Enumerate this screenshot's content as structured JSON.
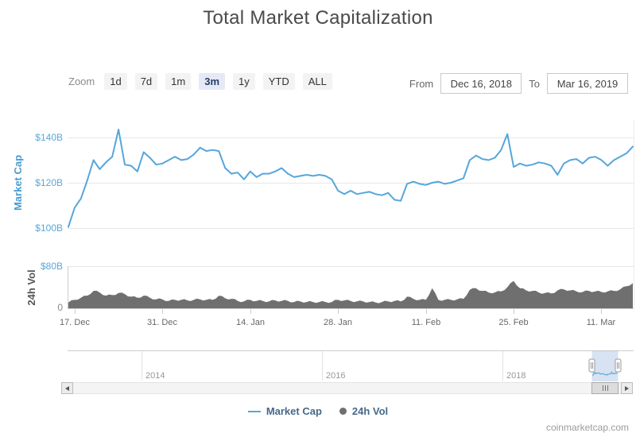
{
  "title": "Total Market Capitalization",
  "toolbar": {
    "zoom_label": "Zoom",
    "buttons": [
      "1d",
      "7d",
      "1m",
      "3m",
      "1y",
      "YTD",
      "ALL"
    ],
    "selected": "3m",
    "from_label": "From",
    "from_value": "Dec 16, 2018",
    "to_label": "To",
    "to_value": "Mar 16, 2019"
  },
  "axes": {
    "cap_title": "Market Cap",
    "cap_ticks": [
      "$140B",
      "$120B",
      "$100B"
    ],
    "vol_title": "24h Vol",
    "vol_ticks": [
      "$80B",
      "0"
    ],
    "x_ticks": [
      "17. Dec",
      "31. Dec",
      "14. Jan",
      "28. Jan",
      "11. Feb",
      "25. Feb",
      "11. Mar"
    ]
  },
  "navigator": {
    "year_labels": [
      "2014",
      "2016",
      "2018"
    ]
  },
  "legend": {
    "items": [
      {
        "label": "Market Cap",
        "marker": "line"
      },
      {
        "label": "24h Vol",
        "marker": "circle"
      }
    ]
  },
  "attribution": "coinmarketcap.com",
  "colors": {
    "market_cap_line": "#55a6dc",
    "volume_fill": "#6f6f6f",
    "axis_label_blue": "#58a7d8",
    "axis_label_gray": "#888888",
    "cap_axis_title": "#4a9bd1",
    "vol_axis_title": "#555555",
    "navigator_mask": "rgba(110,150,210,0.28)"
  },
  "chart_data": {
    "type": "line",
    "title": "Total Market Capitalization",
    "x_start": "2018-12-16",
    "x_end": "2019-03-16",
    "interval": "daily",
    "x_tick_labels": [
      "17. Dec",
      "31. Dec",
      "14. Jan",
      "28. Jan",
      "11. Feb",
      "25. Feb",
      "11. Mar"
    ],
    "cap_axis": {
      "label": "Market Cap",
      "unit": "USD billions",
      "ticks": [
        100,
        120,
        140
      ],
      "range": [
        95,
        148
      ]
    },
    "vol_axis": {
      "label": "24h Vol",
      "unit": "USD billions",
      "ticks": [
        0,
        80
      ],
      "range": [
        0,
        80
      ]
    },
    "navigator_years": [
      2014,
      2016,
      2018
    ],
    "series": [
      {
        "name": "Market Cap",
        "type": "line",
        "unit": "USD billions",
        "values": [
          100.5,
          109,
          113,
          121,
          130,
          126,
          129,
          131.5,
          143.5,
          128,
          127.5,
          125,
          133.5,
          131,
          128,
          128.5,
          130,
          131.5,
          130,
          130.5,
          132.5,
          135.5,
          134,
          134.5,
          134,
          126.5,
          124,
          124.5,
          121.5,
          125,
          122.5,
          124,
          124,
          125,
          126.5,
          124,
          122.5,
          123,
          123.5,
          123,
          123.5,
          123,
          121.5,
          116.5,
          115,
          116.5,
          115,
          115.5,
          116,
          115,
          114.5,
          115.5,
          112.5,
          112,
          119.5,
          120.5,
          119.5,
          119,
          120,
          120.5,
          119.5,
          120,
          121,
          122,
          130,
          132,
          130.5,
          130,
          131,
          134.5,
          141.5,
          127,
          128.5,
          127.5,
          128,
          129,
          128.5,
          127.5,
          123.5,
          128.5,
          130,
          130.5,
          128.5,
          131,
          131.5,
          130,
          127.5,
          130,
          131.5,
          133,
          136
        ]
      },
      {
        "name": "24h Vol",
        "type": "area",
        "unit": "USD billions",
        "values": [
          11,
          16,
          20,
          24,
          33,
          30,
          24,
          25,
          29,
          27,
          22,
          20,
          24,
          20,
          17,
          17,
          14,
          16,
          16,
          15,
          16,
          17,
          16,
          16,
          24,
          19,
          18,
          14,
          13,
          16,
          14,
          14,
          13,
          15,
          14,
          14,
          12,
          13,
          12,
          12,
          12,
          12,
          12,
          16,
          15,
          14,
          13,
          13,
          12,
          11,
          12,
          13,
          14,
          13,
          22,
          18,
          16,
          16,
          38,
          16,
          16,
          16,
          17,
          18,
          35,
          38,
          33,
          30,
          30,
          32,
          40,
          52,
          38,
          34,
          33,
          30,
          29,
          28,
          34,
          36,
          34,
          32,
          31,
          33,
          32,
          31,
          32,
          33,
          36,
          42,
          48
        ]
      }
    ]
  }
}
